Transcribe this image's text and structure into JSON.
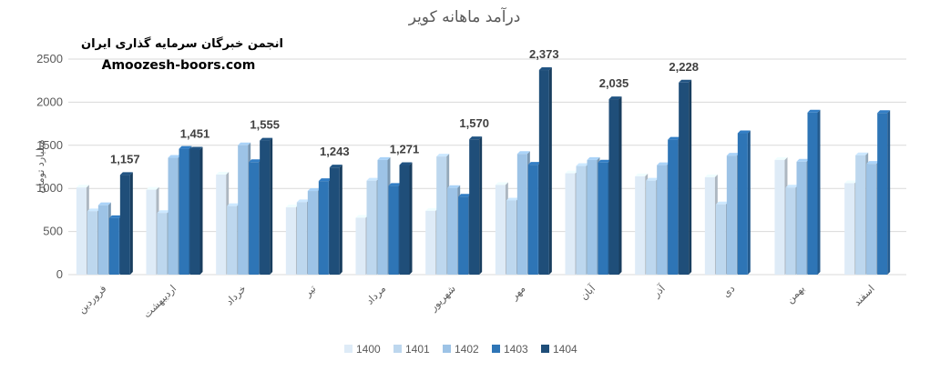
{
  "chart_data": {
    "type": "bar",
    "title": "درآمد ماهانه کویر",
    "watermark_line1": "انجمن خبرگان سرمایه گذاری ایران",
    "watermark_line2": "Amoozesh-boors.com",
    "ylabel": "میلیارد تومان",
    "ylim": [
      0,
      2500
    ],
    "yticks": [
      0,
      500,
      1000,
      1500,
      2000,
      2500
    ],
    "grid": true,
    "legend_position": "bottom",
    "categories": [
      "فروردین",
      "اردیبهشت",
      "خرداد",
      "تیر",
      "مرداد",
      "شهریور",
      "مهر",
      "آبان",
      "آذر",
      "دی",
      "بهمن",
      "اسفند"
    ],
    "series": [
      {
        "name": "1400",
        "color": "#deebf7",
        "values": [
          1010,
          985,
          1160,
          780,
          660,
          740,
          1040,
          1175,
          1140,
          1130,
          1330,
          1060
        ]
      },
      {
        "name": "1401",
        "color": "#bdd7ee",
        "values": [
          735,
          715,
          795,
          840,
          1090,
          1370,
          860,
          1260,
          1090,
          815,
          1010,
          1385
        ]
      },
      {
        "name": "1402",
        "color": "#9dc3e6",
        "values": [
          805,
          1355,
          1500,
          970,
          1330,
          1005,
          1400,
          1330,
          1270,
          1380,
          1310,
          1285
        ]
      },
      {
        "name": "1403",
        "color": "#2e75b6",
        "values": [
          655,
          1460,
          1305,
          1085,
          1030,
          905,
          1275,
          1300,
          1565,
          1640,
          1880,
          1875
        ]
      },
      {
        "name": "1404",
        "color": "#1f4e79",
        "values": [
          1157,
          1451,
          1555,
          1243,
          1271,
          1570,
          2373,
          2035,
          2228,
          null,
          null,
          null
        ]
      }
    ],
    "data_labels": [
      {
        "category_index": 0,
        "series_index": 4,
        "text": "1,157"
      },
      {
        "category_index": 1,
        "series_index": 4,
        "text": "1,451"
      },
      {
        "category_index": 2,
        "series_index": 4,
        "text": "1,555"
      },
      {
        "category_index": 3,
        "series_index": 4,
        "text": "1,243"
      },
      {
        "category_index": 4,
        "series_index": 4,
        "text": "1,271"
      },
      {
        "category_index": 5,
        "series_index": 4,
        "text": "1,570"
      },
      {
        "category_index": 6,
        "series_index": 4,
        "text": "2,373"
      },
      {
        "category_index": 7,
        "series_index": 4,
        "text": "2,035"
      },
      {
        "category_index": 8,
        "series_index": 4,
        "text": "2,228"
      }
    ]
  }
}
